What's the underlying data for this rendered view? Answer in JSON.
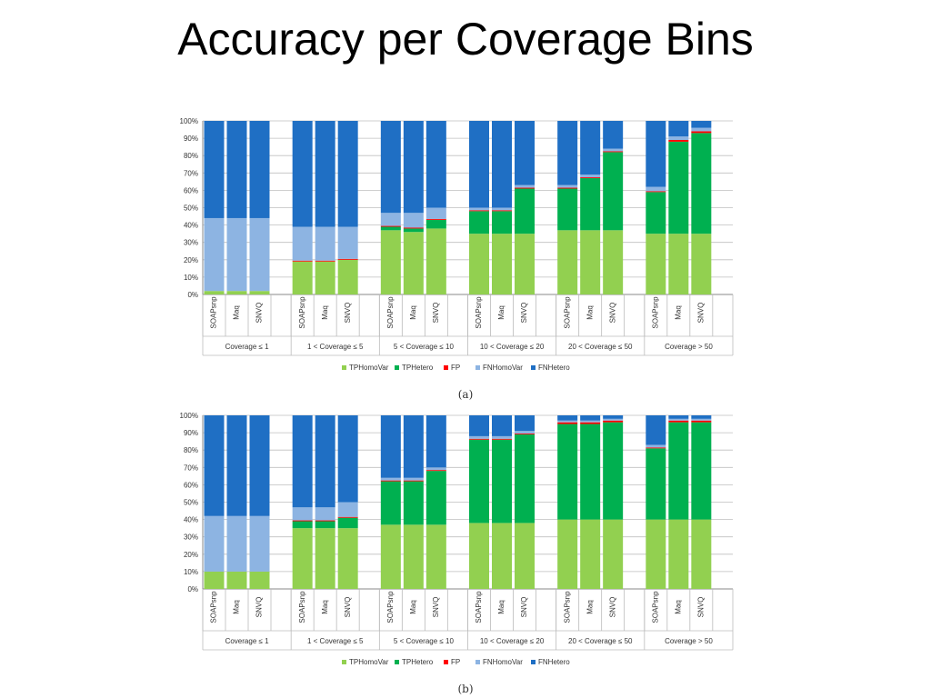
{
  "page": {
    "title": "Accuracy per Coverage Bins"
  },
  "colors": {
    "TPHomoVar": "#92d050",
    "TPHetero": "#00b050",
    "FP": "#ff0000",
    "FNHomoVar": "#8db4e2",
    "FNHetero": "#1f6fc4"
  },
  "chart_data": [
    {
      "type": "bar",
      "stacked": true,
      "caption": "(a)",
      "ylim": [
        0,
        100
      ],
      "yticks": [
        "0%",
        "10%",
        "20%",
        "30%",
        "40%",
        "50%",
        "60%",
        "70%",
        "80%",
        "90%",
        "100%"
      ],
      "groups": [
        "Coverage ≤ 1",
        "1 < Coverage ≤ 5",
        "5 < Coverage ≤ 10",
        "10 < Coverage ≤ 20",
        "20 < Coverage ≤ 50",
        "Coverage > 50"
      ],
      "categories": [
        "SOAPsnp",
        "Maq",
        "SNVQ"
      ],
      "legend": [
        "TPHomoVar",
        "TPHetero",
        "FP",
        "FNHomoVar",
        "FNHetero"
      ],
      "legend_position": "bottom",
      "series": [
        {
          "name": "TPHomoVar",
          "values": [
            [
              2,
              2,
              2
            ],
            [
              19,
              19,
              20
            ],
            [
              37,
              36,
              38
            ],
            [
              35,
              35,
              35
            ],
            [
              37,
              37,
              37
            ],
            [
              35,
              35,
              35
            ]
          ]
        },
        {
          "name": "TPHetero",
          "values": [
            [
              0,
              0,
              0
            ],
            [
              0,
              0,
              0
            ],
            [
              2,
              2,
              5
            ],
            [
              13,
              13,
              26
            ],
            [
              24,
              30,
              45
            ],
            [
              24,
              53,
              58
            ]
          ]
        },
        {
          "name": "FP",
          "values": [
            [
              0,
              0,
              0
            ],
            [
              0.5,
              0.5,
              0.5
            ],
            [
              0.5,
              0.5,
              0.5
            ],
            [
              0.5,
              0.5,
              0.5
            ],
            [
              0.5,
              0.5,
              0.5
            ],
            [
              0.5,
              1,
              1
            ]
          ]
        },
        {
          "name": "FNHomoVar",
          "values": [
            [
              42,
              42,
              42
            ],
            [
              19.5,
              19.5,
              18.5
            ],
            [
              7.5,
              8.5,
              6.5
            ],
            [
              1.5,
              1.5,
              1.5
            ],
            [
              1.5,
              1.5,
              1.5
            ],
            [
              2.5,
              2,
              2
            ]
          ]
        },
        {
          "name": "FNHetero",
          "values": [
            [
              56,
              56,
              56
            ],
            [
              61,
              61,
              61
            ],
            [
              53,
              53,
              50
            ],
            [
              50,
              50,
              37
            ],
            [
              37,
              31,
              16
            ],
            [
              38,
              9,
              4
            ]
          ]
        }
      ]
    },
    {
      "type": "bar",
      "stacked": true,
      "caption": "(b)",
      "ylim": [
        0,
        100
      ],
      "yticks": [
        "0%",
        "10%",
        "20%",
        "30%",
        "40%",
        "50%",
        "60%",
        "70%",
        "80%",
        "90%",
        "100%"
      ],
      "groups": [
        "Coverage ≤ 1",
        "1 < Coverage ≤ 5",
        "5 < Coverage ≤ 10",
        "10 < Coverage ≤ 20",
        "20 < Coverage ≤ 50",
        "Coverage > 50"
      ],
      "categories": [
        "SOAPsnp",
        "Maq",
        "SNVQ"
      ],
      "legend": [
        "TPHomoVar",
        "TPHetero",
        "FP",
        "FNHomoVar",
        "FNHetero"
      ],
      "legend_position": "bottom",
      "series": [
        {
          "name": "TPHomoVar",
          "values": [
            [
              10,
              10,
              10
            ],
            [
              35,
              35,
              35
            ],
            [
              37,
              37,
              37
            ],
            [
              38,
              38,
              38
            ],
            [
              40,
              40,
              40
            ],
            [
              40,
              40,
              40
            ]
          ]
        },
        {
          "name": "TPHetero",
          "values": [
            [
              0,
              0,
              0
            ],
            [
              4,
              4,
              6
            ],
            [
              25,
              25,
              31
            ],
            [
              48,
              48,
              51
            ],
            [
              55,
              55,
              56
            ],
            [
              41,
              56,
              56
            ]
          ]
        },
        {
          "name": "FP",
          "values": [
            [
              0,
              0,
              0
            ],
            [
              0.5,
              0.5,
              0.5
            ],
            [
              0.5,
              0.5,
              0.5
            ],
            [
              0.5,
              0.5,
              0.5
            ],
            [
              1,
              1,
              1
            ],
            [
              0.5,
              1,
              1
            ]
          ]
        },
        {
          "name": "FNHomoVar",
          "values": [
            [
              32,
              32,
              32
            ],
            [
              7.5,
              7.5,
              8.5
            ],
            [
              1.5,
              1.5,
              1.5
            ],
            [
              1.5,
              1.5,
              1.5
            ],
            [
              1,
              1,
              1
            ],
            [
              1.5,
              1,
              1
            ]
          ]
        },
        {
          "name": "FNHetero",
          "values": [
            [
              58,
              58,
              58
            ],
            [
              53,
              53,
              50
            ],
            [
              36,
              36,
              30
            ],
            [
              12,
              12,
              9
            ],
            [
              3,
              3,
              2
            ],
            [
              17,
              2,
              2
            ]
          ]
        }
      ]
    }
  ]
}
